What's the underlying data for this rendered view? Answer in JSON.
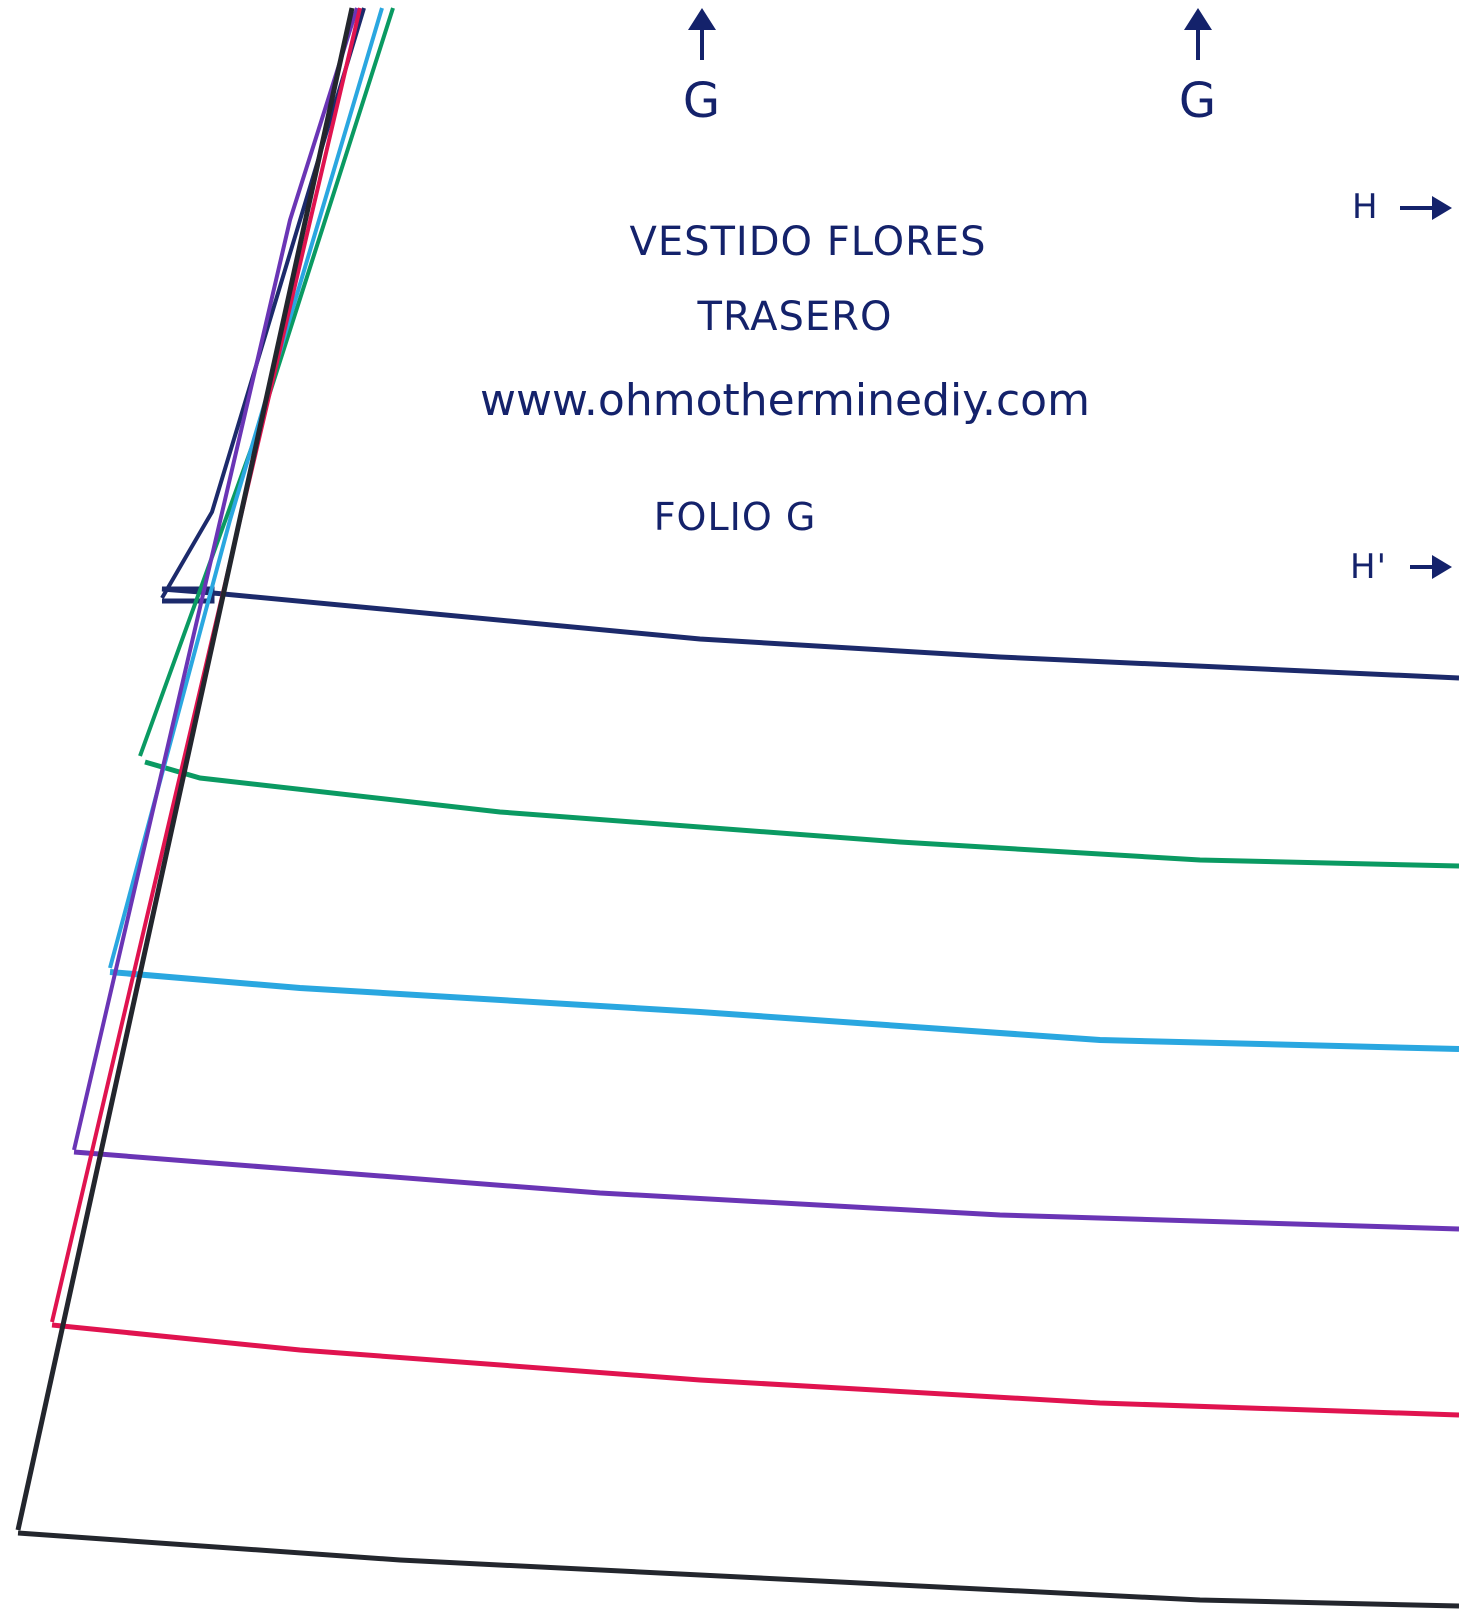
{
  "pattern": {
    "title_line1": "VESTIDO FLORES",
    "title_line2": "TRASERO",
    "website": "www.ohmotherminediy.com",
    "sheet_label": "FOLIO G"
  },
  "markers": {
    "grain_left": "G",
    "grain_right": "G",
    "h_top": "H",
    "h_bottom": "H'"
  },
  "size_lines": [
    {
      "name": "navy",
      "color": "#1c2a6b"
    },
    {
      "name": "green",
      "color": "#0a9a62"
    },
    {
      "name": "light-blue",
      "color": "#2aa7e0"
    },
    {
      "name": "purple",
      "color": "#6a35b5"
    },
    {
      "name": "red",
      "color": "#e0134f"
    },
    {
      "name": "black",
      "color": "#23262d"
    }
  ],
  "ink_color": "#14226b"
}
